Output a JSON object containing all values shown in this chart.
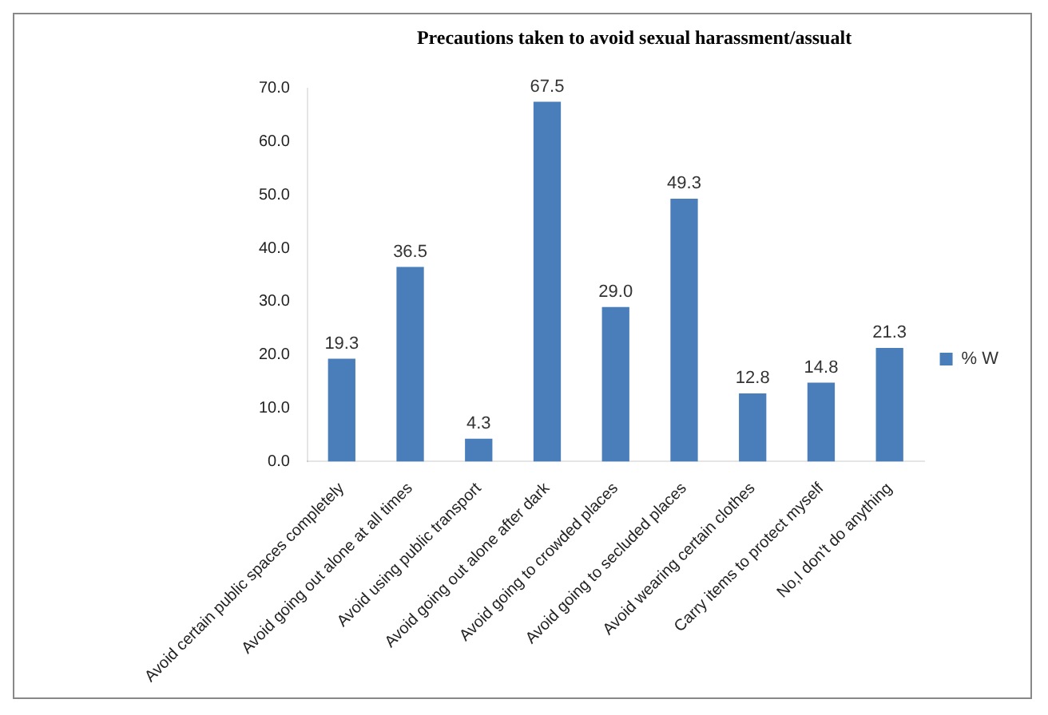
{
  "chart_data": {
    "type": "bar",
    "title": "Precautions taken to avoid sexual harassment/assualt",
    "categories": [
      "Avoid certain public spaces completely",
      "Avoid going out alone at all times",
      "Avoid using public transport",
      "Avoid going out alone after dark",
      "Avoid going to crowded places",
      "Avoid going to secluded places",
      "Avoid wearing certain clothes",
      "Carry items to protect myself",
      "No,I don't do anything"
    ],
    "series": [
      {
        "name": "% W",
        "color": "#4a7ebb",
        "values": [
          19.3,
          36.5,
          4.3,
          67.5,
          29.0,
          49.3,
          12.8,
          14.8,
          21.3
        ],
        "value_labels": [
          "19.3",
          "36.5",
          "4.3",
          "67.5",
          "29.0",
          "49.3",
          "12.8",
          "14.8",
          "21.3"
        ]
      }
    ],
    "ylim": [
      0,
      70
    ],
    "yticks": [
      {
        "value": 0,
        "label": "0.0"
      },
      {
        "value": 10,
        "label": "10.0"
      },
      {
        "value": 20,
        "label": "20.0"
      },
      {
        "value": 30,
        "label": "30.0"
      },
      {
        "value": 40,
        "label": "40.0"
      },
      {
        "value": 50,
        "label": "50.0"
      },
      {
        "value": 60,
        "label": "60.0"
      },
      {
        "value": 70,
        "label": "70.0"
      }
    ],
    "grid": false,
    "legend": "right"
  }
}
